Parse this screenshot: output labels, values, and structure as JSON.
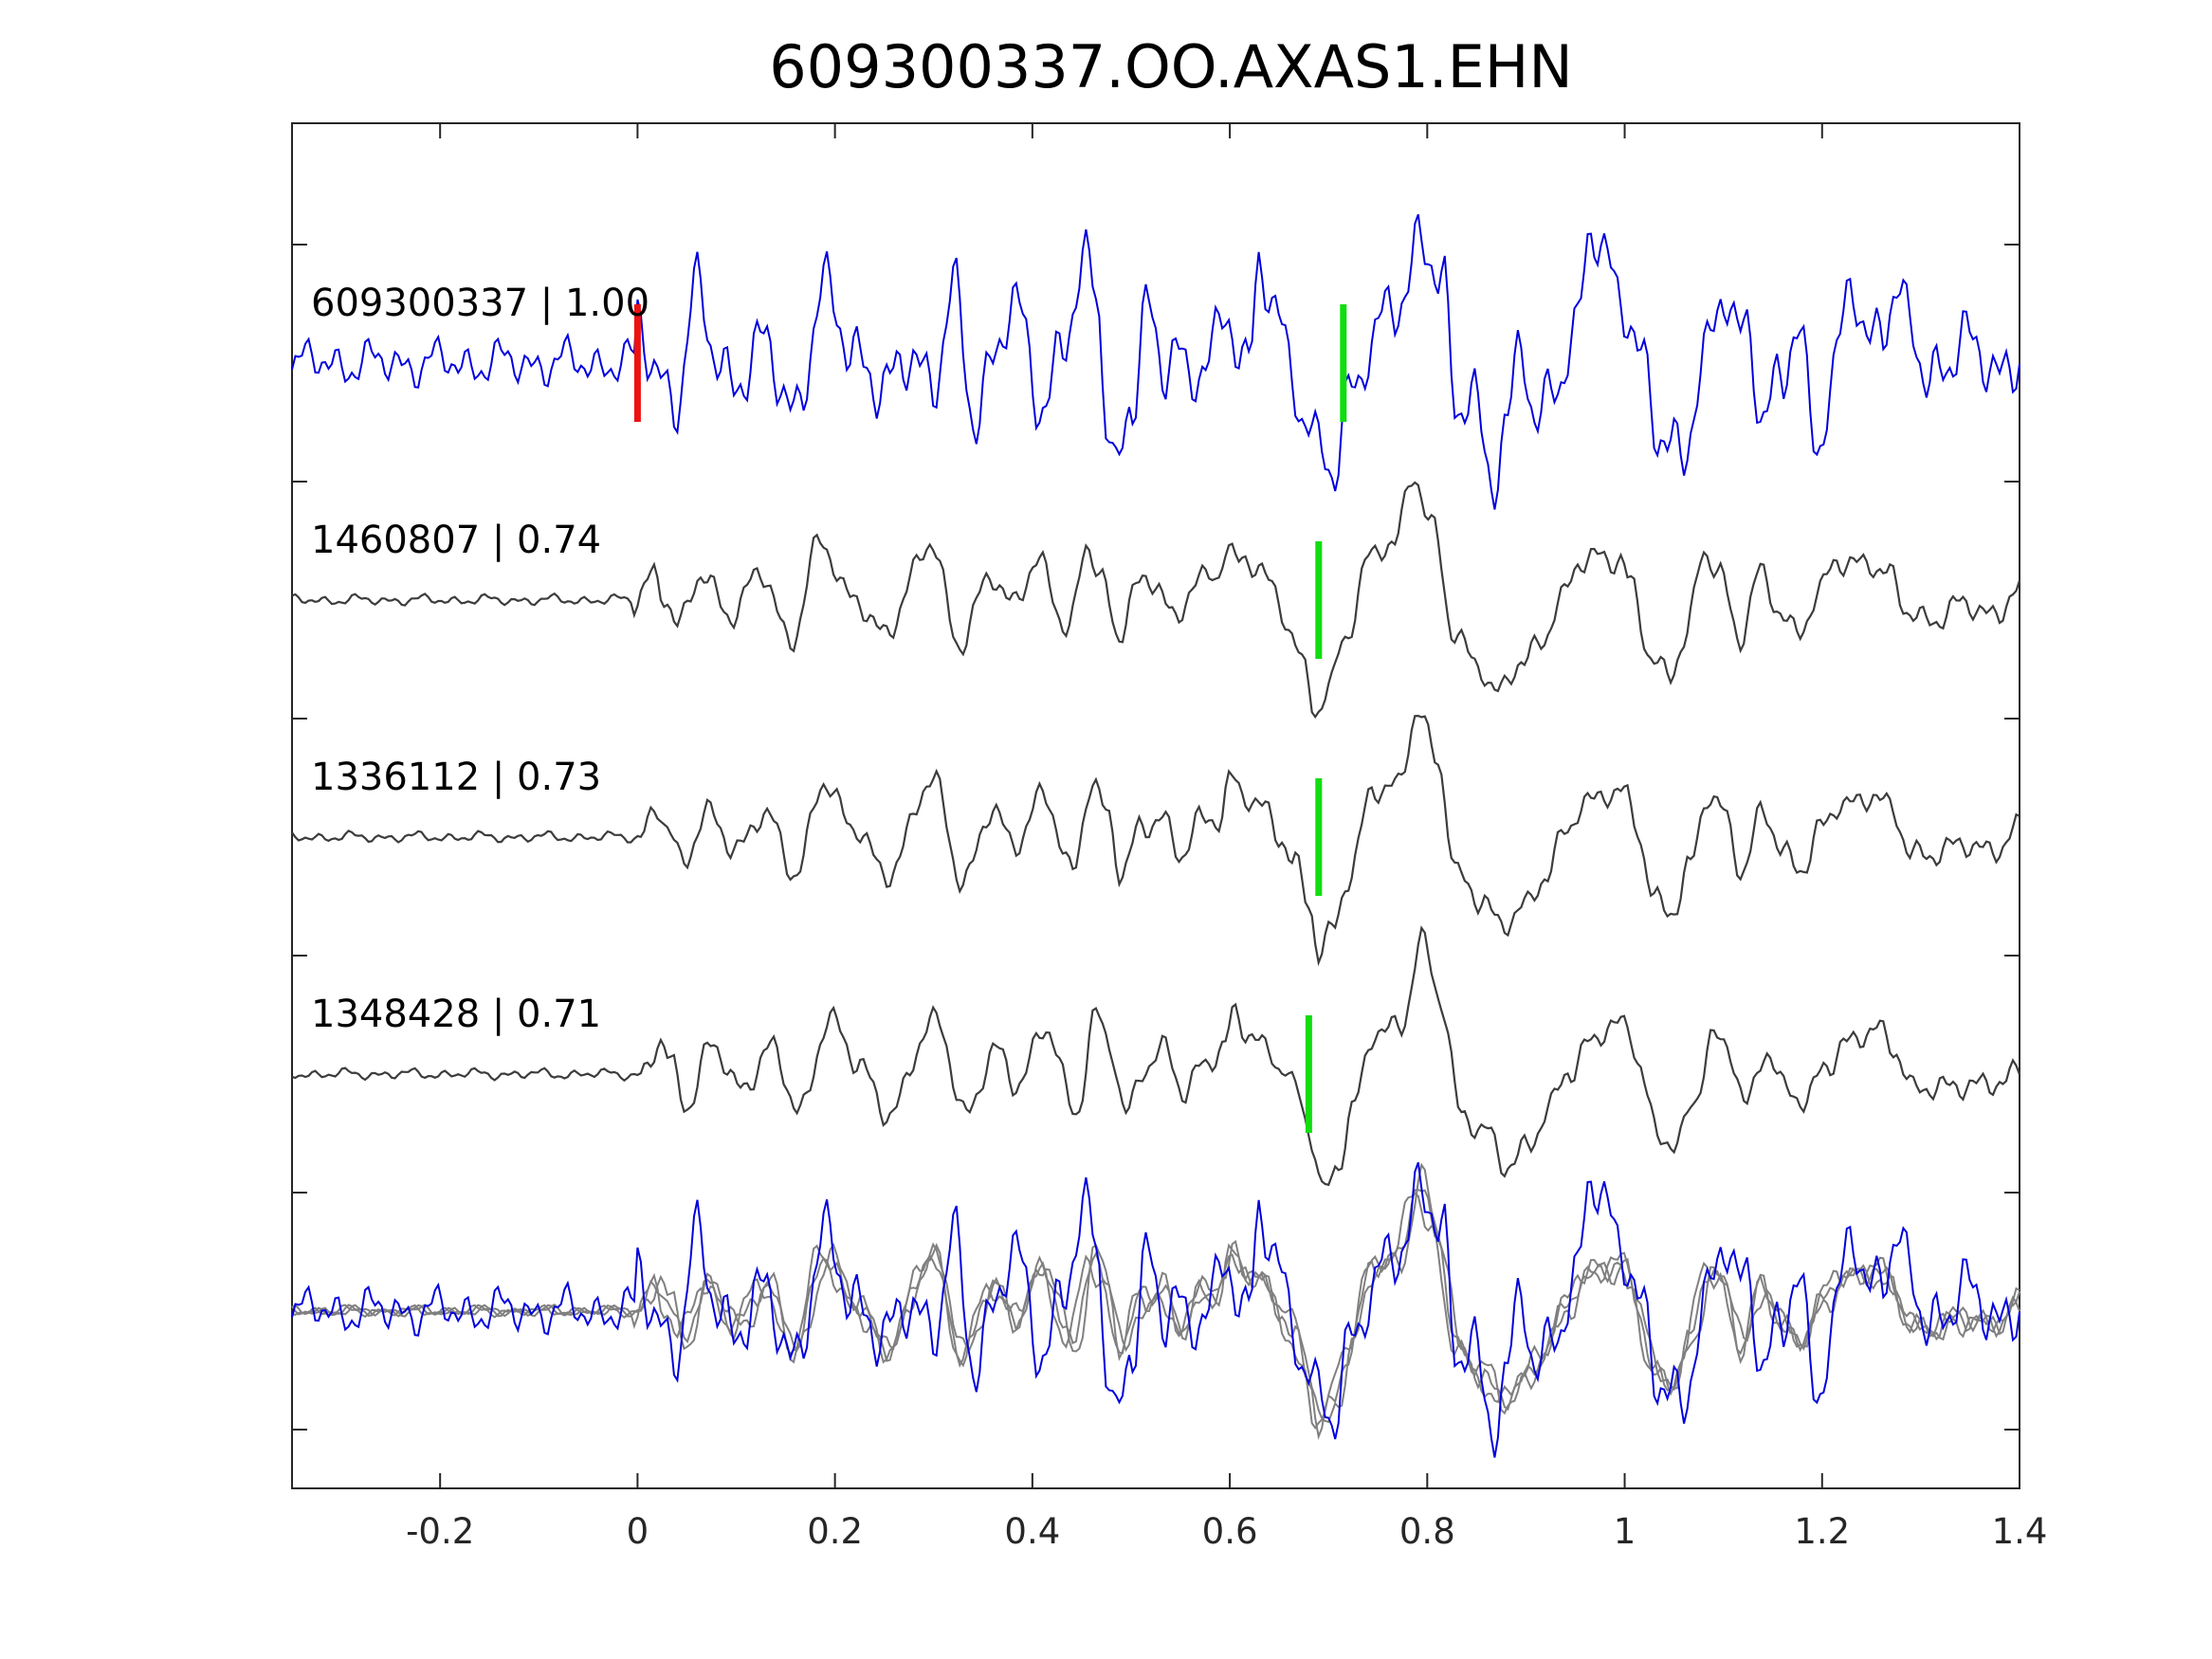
{
  "chart_data": {
    "type": "line",
    "title": "609300337.OO.AXAS1.EHN",
    "xlabel": "",
    "ylabel": "",
    "xlim": [
      -0.35,
      1.4
    ],
    "x_ticks": [
      {
        "value": -0.2,
        "label": "-0.2"
      },
      {
        "value": 0,
        "label": "0"
      },
      {
        "value": 0.2,
        "label": "0.2"
      },
      {
        "value": 0.4,
        "label": "0.4"
      },
      {
        "value": 0.6,
        "label": "0.6"
      },
      {
        "value": 0.8,
        "label": "0.8"
      },
      {
        "value": 1,
        "label": "1"
      },
      {
        "value": 1.2,
        "label": "1.2"
      },
      {
        "value": 1.4,
        "label": "1.4"
      }
    ],
    "grid": false,
    "legend": "none",
    "colors": {
      "master": "#0000dd",
      "template": "#3c3c3c",
      "overlay_template": "#808080",
      "p_pick": "#ee1111",
      "s_pick": "#11dd11",
      "axes": "#262626"
    },
    "traces": [
      {
        "label": "609300337 | 1.00",
        "correlation": 1.0,
        "role": "master",
        "p_pick": 0.0,
        "s_pick": 0.715
      },
      {
        "label": "1460807 | 0.74",
        "correlation": 0.74,
        "role": "template",
        "s_pick": 0.69
      },
      {
        "label": "1336112 | 0.73",
        "correlation": 0.73,
        "role": "template",
        "s_pick": 0.69
      },
      {
        "label": "1348428 | 0.71",
        "correlation": 0.71,
        "role": "template",
        "s_pick": 0.68
      }
    ],
    "master_series": {
      "pre_noise": 0.22,
      "pts": [
        [
          0.0,
          0.35
        ],
        [
          0.02,
          -0.05
        ],
        [
          0.04,
          -0.3
        ],
        [
          0.06,
          0.55
        ],
        [
          0.08,
          0.1
        ],
        [
          0.1,
          -0.15
        ],
        [
          0.13,
          0.1
        ],
        [
          0.16,
          -0.35
        ],
        [
          0.19,
          0.55
        ],
        [
          0.22,
          0.15
        ],
        [
          0.25,
          -0.3
        ],
        [
          0.28,
          0.15
        ],
        [
          0.3,
          -0.2
        ],
        [
          0.32,
          0.55
        ],
        [
          0.34,
          -0.4
        ],
        [
          0.36,
          0.05
        ],
        [
          0.38,
          0.45
        ],
        [
          0.41,
          -0.3
        ],
        [
          0.43,
          0.15
        ],
        [
          0.455,
          0.75
        ],
        [
          0.465,
          0.6
        ],
        [
          0.475,
          -0.3
        ],
        [
          0.485,
          -0.85
        ],
        [
          0.5,
          -0.45
        ],
        [
          0.515,
          0.45
        ],
        [
          0.53,
          -0.1
        ],
        [
          0.545,
          0.35
        ],
        [
          0.56,
          -0.25
        ],
        [
          0.58,
          0.05
        ],
        [
          0.6,
          0.4
        ],
        [
          0.62,
          0.05
        ],
        [
          0.63,
          0.8
        ],
        [
          0.645,
          0.4
        ],
        [
          0.66,
          0.0
        ],
        [
          0.675,
          -0.35
        ],
        [
          0.69,
          -0.7
        ],
        [
          0.705,
          -1.0
        ],
        [
          0.725,
          -0.2
        ],
        [
          0.74,
          0.2
        ],
        [
          0.76,
          0.45
        ],
        [
          0.775,
          0.4
        ],
        [
          0.795,
          1.15
        ],
        [
          0.815,
          0.75
        ],
        [
          0.83,
          -0.5
        ],
        [
          0.845,
          -0.3
        ],
        [
          0.865,
          -0.9
        ],
        [
          0.88,
          -0.5
        ],
        [
          0.895,
          0.1
        ],
        [
          0.91,
          -0.6
        ],
        [
          0.93,
          -0.05
        ],
        [
          0.95,
          0.2
        ],
        [
          0.965,
          1.05
        ],
        [
          0.985,
          0.8
        ],
        [
          1.0,
          0.6
        ],
        [
          1.015,
          0.05
        ],
        [
          1.035,
          -0.7
        ],
        [
          1.06,
          -0.7
        ],
        [
          1.075,
          -0.1
        ],
        [
          1.09,
          0.2
        ],
        [
          1.1,
          0.55
        ],
        [
          1.115,
          0.25
        ],
        [
          1.125,
          0.4
        ],
        [
          1.14,
          -0.45
        ],
        [
          1.16,
          -0.2
        ],
        [
          1.175,
          0.3
        ],
        [
          1.195,
          -0.6
        ],
        [
          1.21,
          -0.2
        ],
        [
          1.23,
          0.65
        ],
        [
          1.245,
          0.15
        ],
        [
          1.26,
          0.45
        ],
        [
          1.275,
          0.55
        ],
        [
          1.29,
          0.25
        ],
        [
          1.305,
          -0.15
        ],
        [
          1.325,
          0.05
        ],
        [
          1.34,
          0.2
        ],
        [
          1.36,
          0.0
        ],
        [
          1.38,
          -0.05
        ],
        [
          1.4,
          0.1
        ]
      ]
    },
    "template_series": {
      "pre_noise": 0.05,
      "pts": [
        [
          -0.05,
          -0.05
        ],
        [
          0.0,
          0.0
        ],
        [
          0.02,
          0.25
        ],
        [
          0.03,
          0.05
        ],
        [
          0.045,
          -0.25
        ],
        [
          0.07,
          0.25
        ],
        [
          0.1,
          -0.15
        ],
        [
          0.13,
          0.25
        ],
        [
          0.16,
          -0.35
        ],
        [
          0.19,
          0.5
        ],
        [
          0.22,
          0.05
        ],
        [
          0.25,
          -0.3
        ],
        [
          0.3,
          0.45
        ],
        [
          0.33,
          -0.35
        ],
        [
          0.36,
          0.2
        ],
        [
          0.38,
          -0.05
        ],
        [
          0.41,
          0.35
        ],
        [
          0.44,
          -0.3
        ],
        [
          0.46,
          0.5
        ],
        [
          0.475,
          0.2
        ],
        [
          0.49,
          -0.35
        ],
        [
          0.51,
          0.1
        ],
        [
          0.53,
          0.2
        ],
        [
          0.55,
          -0.2
        ],
        [
          0.57,
          0.15
        ],
        [
          0.59,
          0.2
        ],
        [
          0.6,
          0.5
        ],
        [
          0.615,
          0.3
        ],
        [
          0.635,
          0.25
        ],
        [
          0.65,
          0.05
        ],
        [
          0.665,
          -0.2
        ],
        [
          0.68,
          -0.6
        ],
        [
          0.69,
          -1.0
        ],
        [
          0.705,
          -0.75
        ],
        [
          0.72,
          -0.3
        ],
        [
          0.745,
          0.35
        ],
        [
          0.77,
          0.45
        ],
        [
          0.79,
          1.1
        ],
        [
          0.81,
          0.6
        ],
        [
          0.83,
          -0.3
        ],
        [
          0.855,
          -0.5
        ],
        [
          0.875,
          -0.8
        ],
        [
          0.9,
          -0.55
        ],
        [
          0.92,
          -0.3
        ],
        [
          0.94,
          0.0
        ],
        [
          0.96,
          0.3
        ],
        [
          0.98,
          0.4
        ],
        [
          1.0,
          0.35
        ],
        [
          1.01,
          0.1
        ],
        [
          1.03,
          -0.5
        ],
        [
          1.05,
          -0.6
        ],
        [
          1.065,
          -0.3
        ],
        [
          1.085,
          0.35
        ],
        [
          1.1,
          0.25
        ],
        [
          1.12,
          -0.3
        ],
        [
          1.14,
          0.2
        ],
        [
          1.16,
          -0.1
        ],
        [
          1.18,
          -0.25
        ],
        [
          1.2,
          0.05
        ],
        [
          1.22,
          0.3
        ],
        [
          1.25,
          0.35
        ],
        [
          1.27,
          0.2
        ],
        [
          1.29,
          -0.1
        ],
        [
          1.32,
          -0.15
        ],
        [
          1.35,
          -0.05
        ],
        [
          1.38,
          -0.1
        ],
        [
          1.4,
          0.05
        ]
      ]
    }
  }
}
